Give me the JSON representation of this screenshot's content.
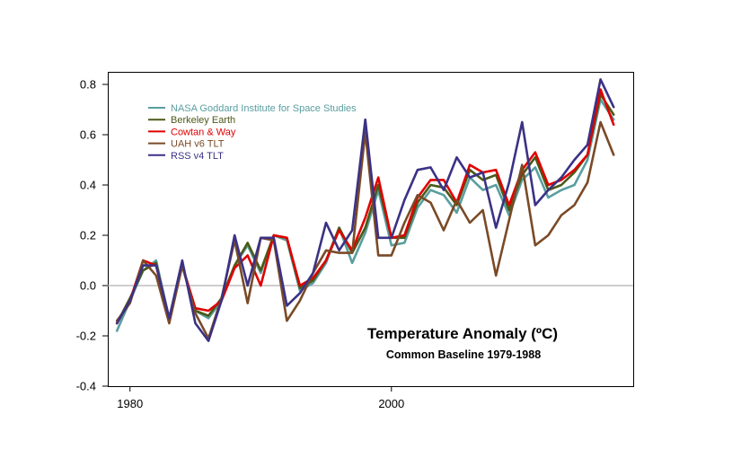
{
  "chart_data": {
    "type": "line",
    "title": "Temperature Anomaly (ºC)",
    "subtitle": "Common Baseline 1979-1988",
    "xlabel": "",
    "ylabel": "",
    "xlim": [
      1978.3,
      2018.5
    ],
    "ylim": [
      -0.4,
      0.85
    ],
    "x_ticks": [
      1980,
      2000
    ],
    "x_tick_labels": [
      "1980",
      "2000"
    ],
    "y_ticks": [
      -0.4,
      -0.2,
      0.0,
      0.2,
      0.4,
      0.6,
      0.8
    ],
    "y_tick_labels": [
      "-0.4",
      "-0.2",
      "0.0",
      "0.2",
      "0.4",
      "0.6",
      "0.8"
    ],
    "zero_line": true,
    "grid": false,
    "legend_position": "top-left",
    "x": [
      1979,
      1980,
      1981,
      1982,
      1983,
      1984,
      1985,
      1986,
      1987,
      1988,
      1989,
      1990,
      1991,
      1992,
      1993,
      1994,
      1995,
      1996,
      1997,
      1998,
      1999,
      2000,
      2001,
      2002,
      2003,
      2004,
      2005,
      2006,
      2007,
      2008,
      2009,
      2010,
      2011,
      2012,
      2013,
      2014,
      2015,
      2016,
      2017
    ],
    "series": [
      {
        "name": "NASA Goddard Institute for Space Studies",
        "color": "#5a9ea0",
        "values": [
          -0.18,
          -0.06,
          0.06,
          0.1,
          -0.13,
          0.08,
          -0.1,
          -0.13,
          -0.06,
          0.08,
          0.16,
          0.05,
          0.2,
          0.18,
          -0.02,
          0.01,
          0.09,
          0.23,
          0.09,
          0.21,
          0.38,
          0.16,
          0.17,
          0.31,
          0.38,
          0.36,
          0.29,
          0.43,
          0.38,
          0.4,
          0.28,
          0.42,
          0.47,
          0.35,
          0.38,
          0.4,
          0.5,
          0.74,
          0.66
        ]
      },
      {
        "name": "Berkeley Earth",
        "color": "#4a5a18",
        "values": [
          -0.15,
          -0.05,
          0.06,
          0.09,
          -0.14,
          0.08,
          -0.1,
          -0.12,
          -0.05,
          0.08,
          0.17,
          0.06,
          0.2,
          0.19,
          -0.01,
          0.02,
          0.1,
          0.23,
          0.13,
          0.23,
          0.4,
          0.19,
          0.19,
          0.33,
          0.4,
          0.39,
          0.32,
          0.46,
          0.42,
          0.44,
          0.3,
          0.44,
          0.51,
          0.38,
          0.4,
          0.45,
          0.52,
          0.76,
          0.68
        ]
      },
      {
        "name": "Cowtan & Way",
        "color": "#e00000",
        "values": [
          -0.15,
          -0.06,
          0.1,
          0.08,
          -0.13,
          0.08,
          -0.09,
          -0.1,
          -0.06,
          0.07,
          0.12,
          0.0,
          0.2,
          0.19,
          0.0,
          0.03,
          0.1,
          0.22,
          0.14,
          0.27,
          0.43,
          0.19,
          0.2,
          0.35,
          0.42,
          0.42,
          0.33,
          0.48,
          0.45,
          0.46,
          0.32,
          0.46,
          0.53,
          0.4,
          0.42,
          0.46,
          0.52,
          0.78,
          0.64
        ]
      },
      {
        "name": "UAH v6 TLT",
        "color": "#7a4a26",
        "values": [
          -0.14,
          -0.07,
          0.1,
          0.04,
          -0.15,
          0.08,
          -0.11,
          -0.21,
          -0.05,
          0.18,
          -0.07,
          0.19,
          0.18,
          -0.14,
          -0.06,
          0.05,
          0.14,
          0.13,
          0.13,
          0.61,
          0.12,
          0.12,
          0.25,
          0.36,
          0.33,
          0.22,
          0.34,
          0.25,
          0.3,
          0.04,
          0.26,
          0.48,
          0.16,
          0.2,
          0.28,
          0.32,
          0.41,
          0.65,
          0.52
        ]
      },
      {
        "name": "RSS v4 TLT",
        "color": "#3b3285",
        "values": [
          -0.15,
          -0.06,
          0.08,
          0.08,
          -0.13,
          0.1,
          -0.15,
          -0.22,
          -0.06,
          0.2,
          0.0,
          0.19,
          0.19,
          -0.08,
          -0.03,
          0.05,
          0.25,
          0.14,
          0.22,
          0.66,
          0.19,
          0.19,
          0.34,
          0.46,
          0.47,
          0.38,
          0.51,
          0.43,
          0.45,
          0.23,
          0.41,
          0.65,
          0.32,
          0.38,
          0.43,
          0.5,
          0.56,
          0.82,
          0.71
        ]
      }
    ]
  }
}
